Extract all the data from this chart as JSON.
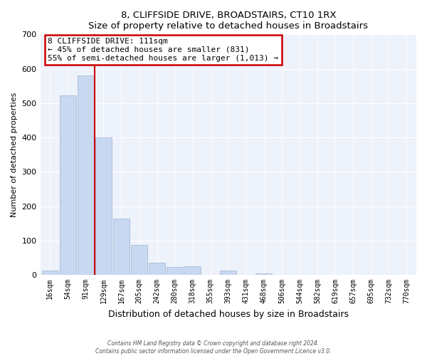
{
  "title": "8, CLIFFSIDE DRIVE, BROADSTAIRS, CT10 1RX",
  "subtitle": "Size of property relative to detached houses in Broadstairs",
  "xlabel": "Distribution of detached houses by size in Broadstairs",
  "ylabel": "Number of detached properties",
  "bar_labels": [
    "16sqm",
    "54sqm",
    "91sqm",
    "129sqm",
    "167sqm",
    "205sqm",
    "242sqm",
    "280sqm",
    "318sqm",
    "355sqm",
    "393sqm",
    "431sqm",
    "468sqm",
    "506sqm",
    "544sqm",
    "582sqm",
    "619sqm",
    "657sqm",
    "695sqm",
    "732sqm",
    "770sqm"
  ],
  "bar_values": [
    13,
    522,
    580,
    401,
    164,
    88,
    35,
    22,
    24,
    0,
    12,
    0,
    5,
    0,
    0,
    0,
    0,
    0,
    0,
    0,
    0
  ],
  "bar_color": "#c8d8f0",
  "bar_edge_color": "#a8bcd8",
  "vline_x": 2.5,
  "vline_color": "#cc0000",
  "annotation_title": "8 CLIFFSIDE DRIVE: 111sqm",
  "annotation_line1": "← 45% of detached houses are smaller (831)",
  "annotation_line2": "55% of semi-detached houses are larger (1,013) →",
  "ylim": [
    0,
    700
  ],
  "yticks": [
    0,
    100,
    200,
    300,
    400,
    500,
    600,
    700
  ],
  "footer_line1": "Contains HM Land Registry data © Crown copyright and database right 2024.",
  "footer_line2": "Contains public sector information licensed under the Open Government Licence v3.0.",
  "bg_color": "#ffffff",
  "plot_bg_color": "#eef2fb"
}
